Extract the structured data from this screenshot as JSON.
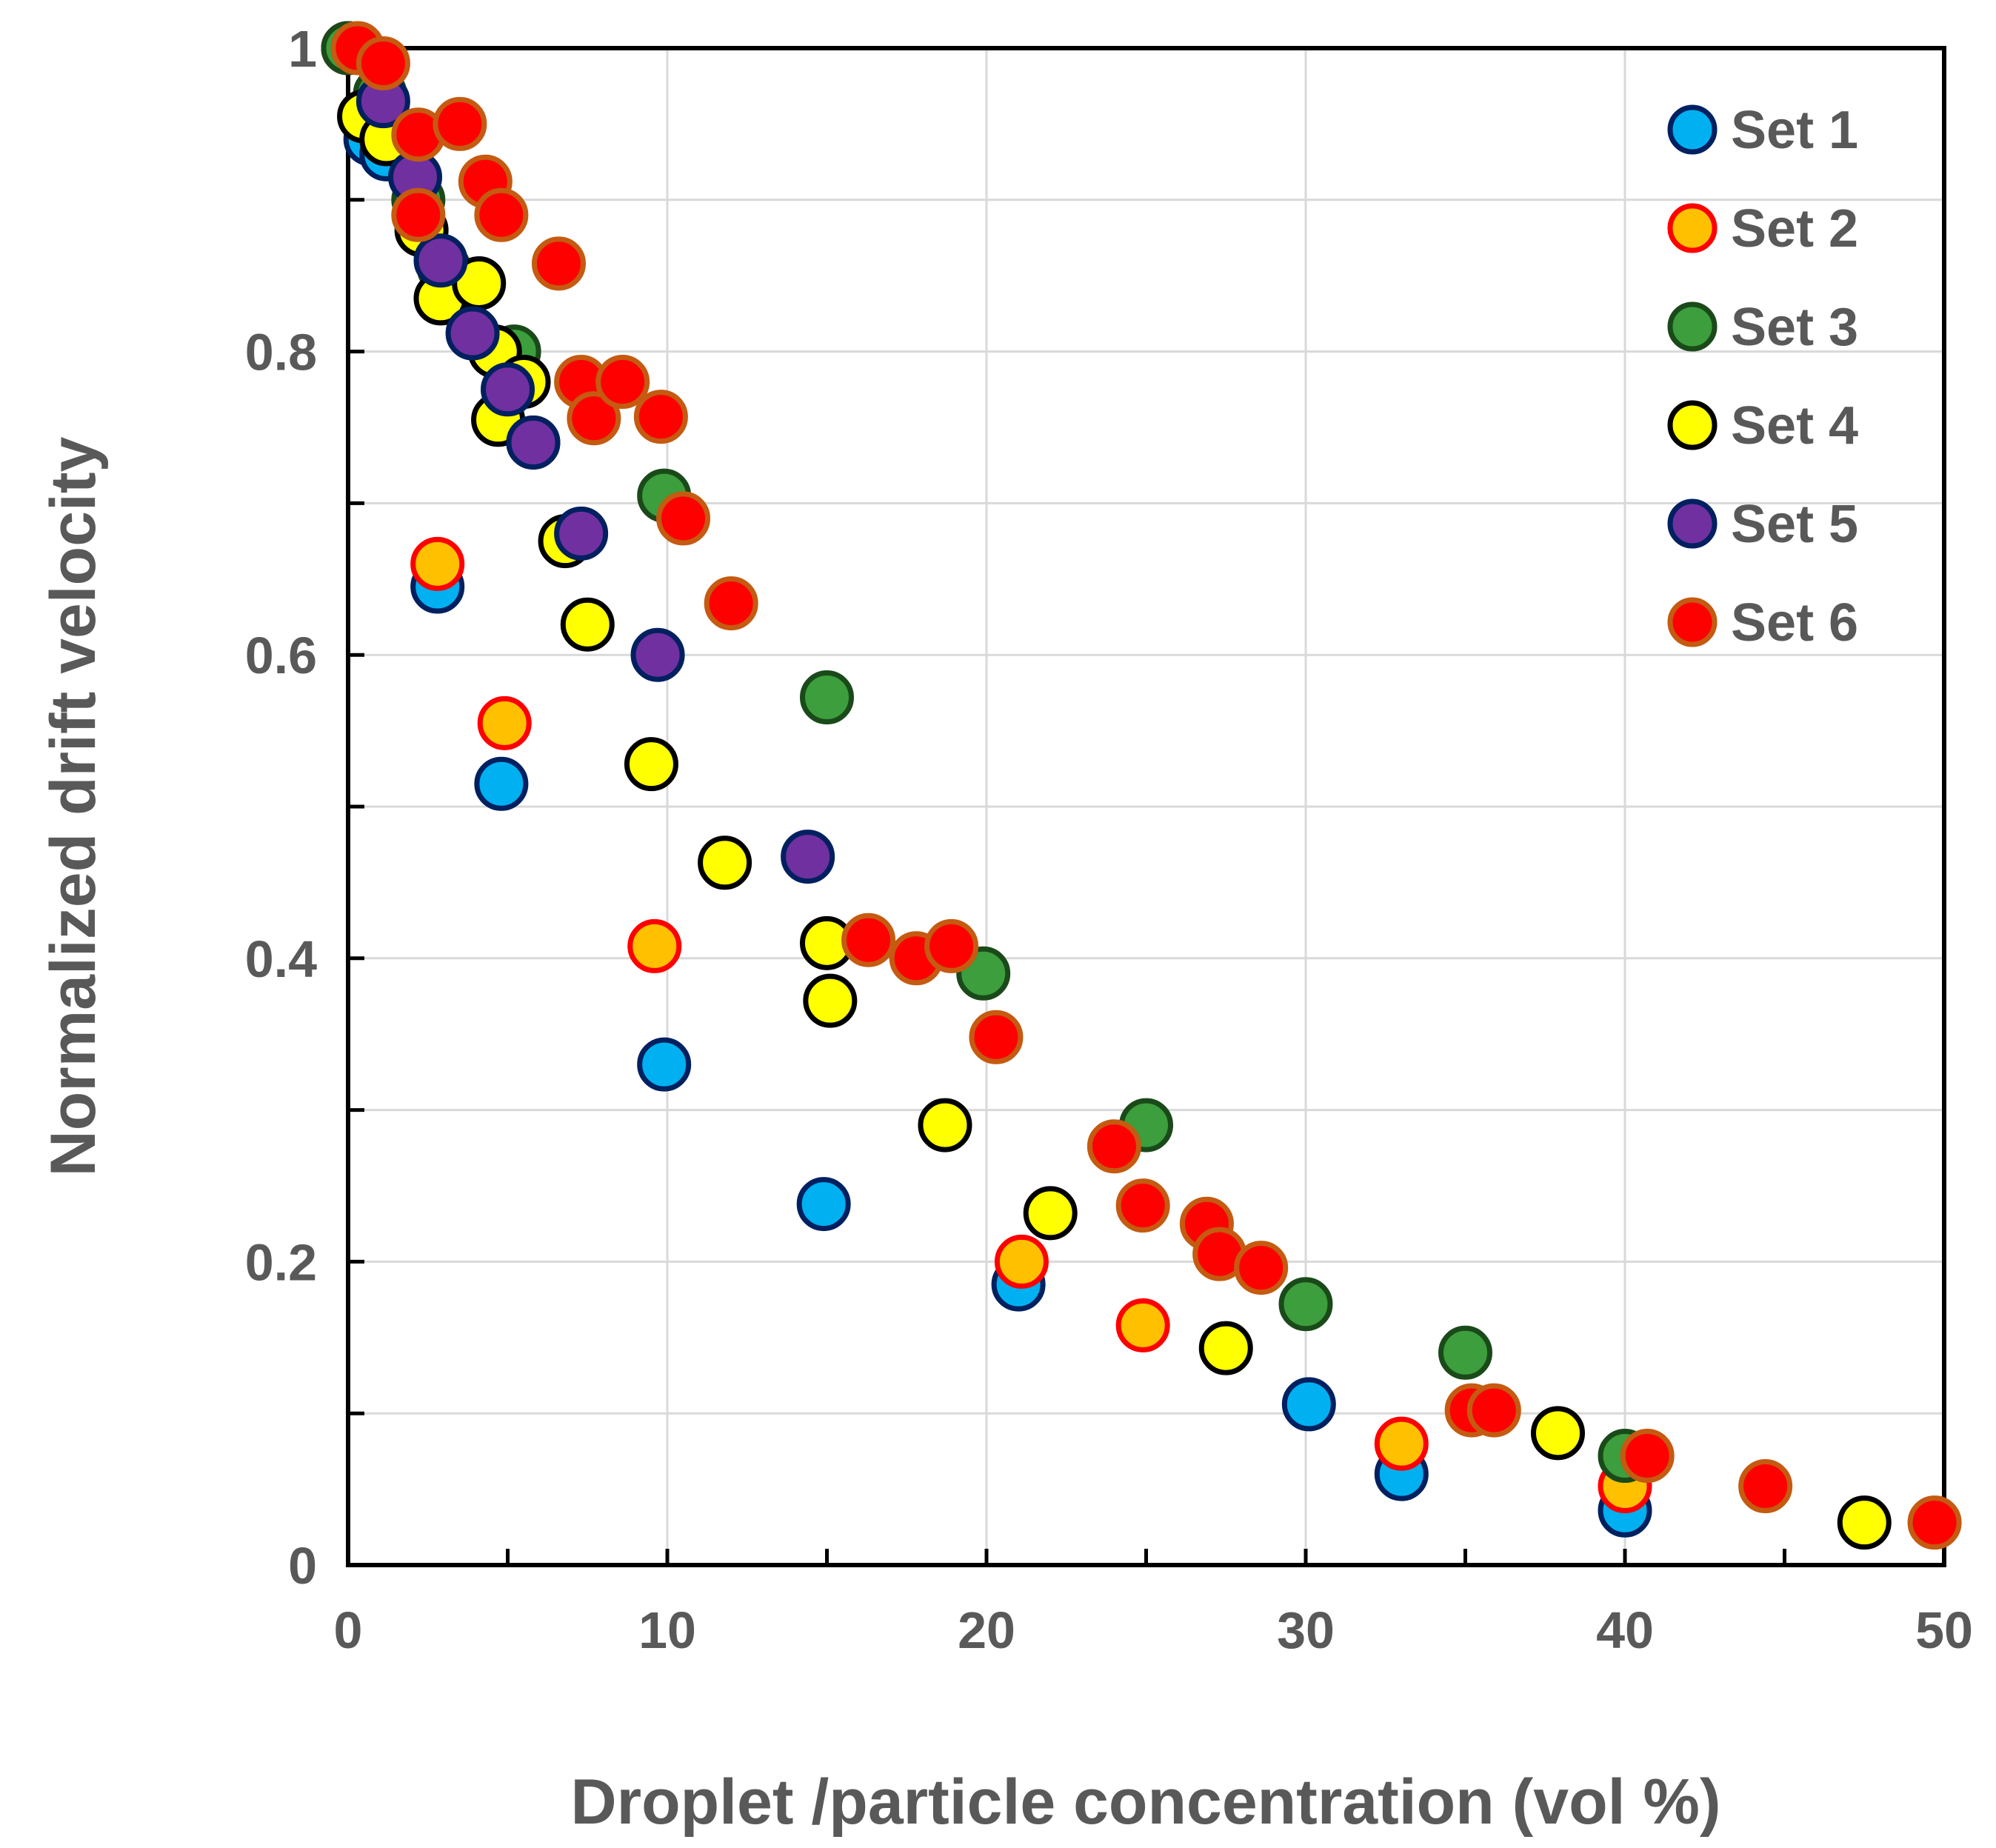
{
  "chart_data": {
    "type": "scatter",
    "xlabel": "Droplet /particle concentration (vol %)",
    "ylabel": "Normalized drift velocity",
    "xlim": [
      0,
      50
    ],
    "ylim": [
      0,
      1
    ],
    "x_ticks": [
      0,
      10,
      20,
      30,
      40,
      50
    ],
    "y_ticks": [
      0,
      0.2,
      0.4,
      0.6,
      0.8,
      1
    ],
    "x_tick_labels": [
      "0",
      "10",
      "20",
      "30",
      "40",
      "50"
    ],
    "y_tick_labels": [
      "0",
      "0.2",
      "0.4",
      "0.6",
      "0.8",
      "1"
    ],
    "grid": true,
    "legend_position": "top-right",
    "series": [
      {
        "name": "Set 1",
        "fill": "#00B0F0",
        "stroke": "#002060",
        "points": [
          [
            0,
            1
          ],
          [
            0.7,
            0.94
          ],
          [
            1.2,
            0.93
          ],
          [
            2.8,
            0.645
          ],
          [
            4.8,
            0.515
          ],
          [
            9.9,
            0.33
          ],
          [
            14.9,
            0.238
          ],
          [
            21.0,
            0.185
          ],
          [
            30.1,
            0.106
          ],
          [
            33.0,
            0.06
          ],
          [
            40.0,
            0.036
          ]
        ]
      },
      {
        "name": "Set 2",
        "fill": "#FFC000",
        "stroke": "#FF0000",
        "points": [
          [
            0,
            1
          ],
          [
            2.8,
            0.66
          ],
          [
            4.9,
            0.555
          ],
          [
            9.6,
            0.408
          ],
          [
            21.1,
            0.2
          ],
          [
            24.9,
            0.158
          ],
          [
            33.0,
            0.08
          ],
          [
            40.0,
            0.052
          ]
        ]
      },
      {
        "name": "Set 3",
        "fill": "#3C9E3C",
        "stroke": "#1A4A1A",
        "points": [
          [
            0,
            1
          ],
          [
            1.0,
            0.97
          ],
          [
            2.2,
            0.9
          ],
          [
            3.0,
            0.855
          ],
          [
            5.2,
            0.8
          ],
          [
            9.9,
            0.705
          ],
          [
            15.0,
            0.572
          ],
          [
            19.9,
            0.39
          ],
          [
            25.0,
            0.29
          ],
          [
            30.0,
            0.172
          ],
          [
            35.0,
            0.14
          ],
          [
            40.0,
            0.072
          ]
        ]
      },
      {
        "name": "Set 4",
        "fill": "#FFFF00",
        "stroke": "#000000",
        "points": [
          [
            0.5,
            0.955
          ],
          [
            1.2,
            0.94
          ],
          [
            2.3,
            0.88
          ],
          [
            2.9,
            0.835
          ],
          [
            4.1,
            0.845
          ],
          [
            4.6,
            0.8
          ],
          [
            4.7,
            0.755
          ],
          [
            5.5,
            0.78
          ],
          [
            5.8,
            0.74
          ],
          [
            6.8,
            0.675
          ],
          [
            7.5,
            0.62
          ],
          [
            9.5,
            0.528
          ],
          [
            11.8,
            0.463
          ],
          [
            15.0,
            0.41
          ],
          [
            15.1,
            0.372
          ],
          [
            18.7,
            0.29
          ],
          [
            22.0,
            0.232
          ],
          [
            27.5,
            0.143
          ],
          [
            37.9,
            0.087
          ],
          [
            47.5,
            0.028
          ]
        ]
      },
      {
        "name": "Set 5",
        "fill": "#7030A0",
        "stroke": "#002060",
        "points": [
          [
            1.1,
            0.965
          ],
          [
            2.1,
            0.915
          ],
          [
            2.9,
            0.86
          ],
          [
            3.9,
            0.812
          ],
          [
            5.0,
            0.775
          ],
          [
            5.8,
            0.74
          ],
          [
            7.3,
            0.68
          ],
          [
            9.7,
            0.6
          ],
          [
            14.4,
            0.467
          ]
        ]
      },
      {
        "name": "Set 6",
        "fill": "#FF0000",
        "stroke": "#C55A11",
        "points": [
          [
            0.3,
            1
          ],
          [
            1.1,
            0.99
          ],
          [
            2.2,
            0.943
          ],
          [
            2.2,
            0.89
          ],
          [
            3.5,
            0.95
          ],
          [
            4.3,
            0.912
          ],
          [
            4.8,
            0.89
          ],
          [
            6.6,
            0.858
          ],
          [
            7.3,
            0.78
          ],
          [
            7.7,
            0.756
          ],
          [
            8.6,
            0.78
          ],
          [
            9.8,
            0.757
          ],
          [
            10.5,
            0.69
          ],
          [
            12.0,
            0.634
          ],
          [
            16.3,
            0.412
          ],
          [
            17.8,
            0.4
          ],
          [
            18.9,
            0.408
          ],
          [
            20.3,
            0.348
          ],
          [
            24.0,
            0.276
          ],
          [
            24.9,
            0.237
          ],
          [
            26.9,
            0.225
          ],
          [
            27.3,
            0.205
          ],
          [
            28.6,
            0.196
          ],
          [
            35.2,
            0.102
          ],
          [
            35.9,
            0.102
          ],
          [
            40.7,
            0.072
          ],
          [
            44.4,
            0.052
          ],
          [
            49.7,
            0.028
          ]
        ]
      }
    ]
  }
}
